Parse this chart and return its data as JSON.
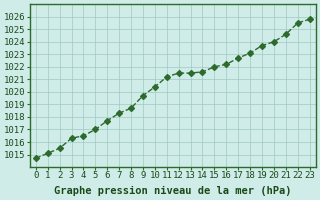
{
  "x": [
    0,
    1,
    2,
    3,
    4,
    5,
    6,
    7,
    8,
    9,
    10,
    11,
    12,
    13,
    14,
    15,
    16,
    17,
    18,
    19,
    20,
    21,
    22,
    23
  ],
  "y": [
    1014.7,
    1015.1,
    1015.5,
    1016.3,
    1016.5,
    1017.0,
    1017.7,
    1018.3,
    1018.7,
    1019.7,
    1020.4,
    1021.2,
    1021.5,
    1021.5,
    1021.6,
    1022.0,
    1022.2,
    1022.7,
    1023.1,
    1023.7,
    1024.0,
    1024.6,
    1025.5,
    1025.8
  ],
  "line_color": "#2d6a2d",
  "marker": "D",
  "marker_size": 3,
  "line_width": 1.0,
  "bg_color": "#d0ece8",
  "grid_color": "#a0c8c0",
  "xlabel": "Graphe pression niveau de la mer (hPa)",
  "xlabel_color": "#1a4a1a",
  "xlabel_fontsize": 7.5,
  "tick_label_color": "#1a4a1a",
  "tick_fontsize": 6.5,
  "ylim": [
    1014,
    1027
  ],
  "yticks": [
    1015,
    1016,
    1017,
    1018,
    1019,
    1020,
    1021,
    1022,
    1023,
    1024,
    1025,
    1026
  ],
  "xticks": [
    0,
    1,
    2,
    3,
    4,
    5,
    6,
    7,
    8,
    9,
    10,
    11,
    12,
    13,
    14,
    15,
    16,
    17,
    18,
    19,
    20,
    21,
    22,
    23
  ],
  "border_color": "#2d6a2d"
}
